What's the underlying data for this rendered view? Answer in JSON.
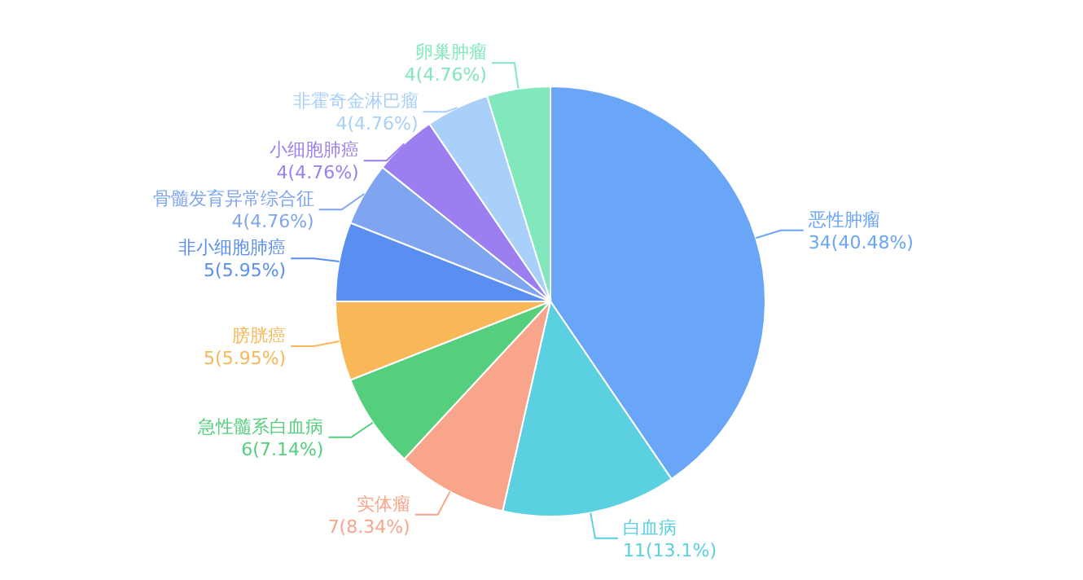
{
  "chart_data": {
    "type": "pie",
    "categories": [
      "恶性肿瘤",
      "白血病",
      "实体瘤",
      "急性髓系白血病",
      "膀胱癌",
      "非小细胞肺癌",
      "骨髓发育异常综合征",
      "小细胞肺癌",
      "非霍奇金淋巴瘤",
      "卵巢肿瘤"
    ],
    "values": [
      34,
      11,
      7,
      6,
      5,
      5,
      4,
      4,
      4,
      4
    ],
    "value_labels": [
      "34(40.48%)",
      "11(13.1%)",
      "7(8.34%)",
      "6(7.14%)",
      "5(5.95%)",
      "5(5.95%)",
      "4(4.76%)",
      "4(4.76%)",
      "4(4.76%)",
      "4(4.76%)"
    ],
    "colors": [
      "#6aa6f8",
      "#5ad0e0",
      "#f8a58c",
      "#55cf7e",
      "#f8b858",
      "#5a8ef0",
      "#7fa5f0",
      "#9b7ef0",
      "#a8d0f8",
      "#80e8bc"
    ],
    "legend": false
  }
}
